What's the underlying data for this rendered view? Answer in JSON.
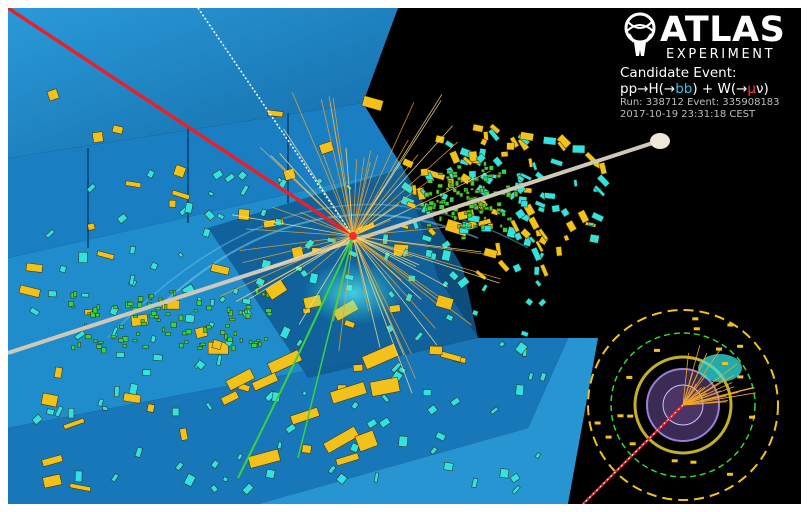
{
  "logo": {
    "title": "ATLAS",
    "subtitle": "EXPERIMENT"
  },
  "event": {
    "title": "Candidate Event:",
    "process": {
      "prefix": "pp",
      "arrow1": "→",
      "h_open": "H(",
      "arrow2": "→",
      "bb": "bb",
      "h_close": ") + W(",
      "arrow3": "→",
      "mu": "μ",
      "nu_close": "ν)"
    },
    "run": "Run: 338712 Event: 335908183",
    "date": "2017-10-19 23:31:18 CEST"
  },
  "colors": {
    "background": "#000000",
    "detector_blue": "#1e8fd0",
    "calorimeter_yellow": "#f2c21b",
    "hit_cyan": "#2fe3e3",
    "muon_red": "#e8202a",
    "track_orange": "#f5a623",
    "cell_green": "#39d33c"
  }
}
